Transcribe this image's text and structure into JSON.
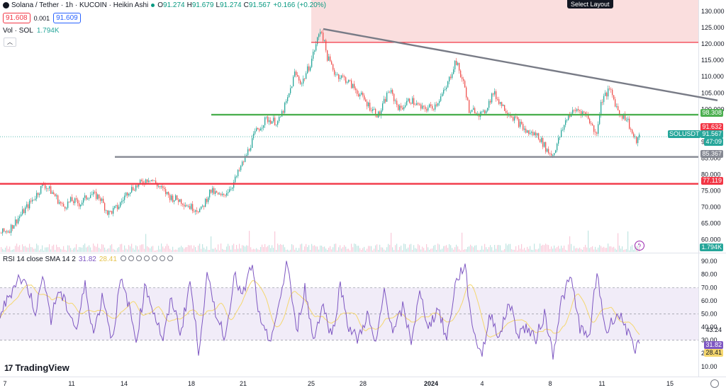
{
  "header": {
    "symbol": "Solana / Tether · 1h · KUCOIN · Heikin Ashi",
    "open_label": "O",
    "open": "91.274",
    "high_label": "H",
    "high": "91.679",
    "low_label": "L",
    "low": "91.274",
    "close_label": "C",
    "close": "91.567",
    "change": "+0.166 (+0.20%)",
    "sell_price": "91.608",
    "spread": "0.001",
    "buy_price": "91.609"
  },
  "volume": {
    "label": "Vol · SOL",
    "value": "1.794K"
  },
  "select_layout": "Select Layout",
  "rsi": {
    "label": "RSI 14 close SMA 14 2",
    "value": "31.82",
    "sma_value": "28.41"
  },
  "brand": "TradingView",
  "price_tags": {
    "resistance_green": "98.308",
    "red_tag": "91.632",
    "symbol_tag": "SOLUSDT",
    "last_price": "91.567",
    "countdown": "47:09",
    "support_gray": "85.367",
    "support_red": "77.119",
    "volume_tag": "1.794K",
    "rsi_value": "31.82",
    "rsi_sma": "28.41",
    "rsi_extra": "43.24"
  },
  "colors": {
    "up": "#26a69a",
    "down": "#ef5350",
    "green_line": "#4caf50",
    "red_line": "#f23645",
    "gray_line": "#868993",
    "rsi_line": "#7e57c2",
    "rsi_sma": "#f5d76e",
    "zone": "#f8d3d3"
  },
  "chart_data": [
    {
      "type": "candlestick",
      "style": "Heikin Ashi",
      "title": "Solana / Tether · 1h · KUCOIN · Heikin Ashi",
      "x_ticks": [
        "7",
        "11",
        "14",
        "18",
        "21",
        "25",
        "28",
        "2024",
        "4",
        "8",
        "11",
        "15"
      ],
      "y_ticks": [
        130,
        125,
        120,
        115,
        110,
        105,
        100,
        95,
        90,
        85,
        80,
        75,
        70,
        65,
        60
      ],
      "y_tick_labels": [
        "130.000",
        "125.000",
        "120.000",
        "115.000",
        "110.000",
        "105.000",
        "100.000",
        "95.000",
        "90.000",
        "85.000",
        "80.000",
        "75.000",
        "70.000",
        "65.000",
        "60.000"
      ],
      "ylim": [
        57.5,
        133.5
      ],
      "series": [
        {
          "name": "SOLUSDT",
          "close_path_x": [
            0,
            12,
            30,
            48,
            61,
            75,
            88,
            100,
            112,
            126,
            140,
            152,
            166,
            180,
            196,
            210,
            225,
            240,
            254,
            268,
            283,
            296,
            312,
            328,
            345,
            360,
            375,
            392,
            405,
            415,
            425,
            437,
            452,
            461,
            472,
            488,
            505,
            520,
            534,
            548,
            563,
            578,
            595,
            612,
            628,
            642,
            656,
            662,
            668,
            680,
            695,
            712,
            726,
            742,
            758,
            772,
            779,
            788,
            800,
            814,
            828,
            840,
            848,
            860,
            872,
            884,
            890,
            896,
            902
          ],
          "close_path_y": [
            62,
            63,
            68,
            73,
            77,
            74,
            70,
            72,
            71,
            74,
            73,
            68,
            70,
            75,
            77,
            79,
            76,
            73,
            72,
            70,
            69,
            75,
            73,
            77,
            85,
            93,
            97,
            96,
            103,
            111,
            108,
            114,
            125,
            116,
            111,
            109,
            105,
            101,
            98,
            106,
            100,
            103,
            100,
            101,
            106,
            115,
            106,
            98,
            100,
            98,
            105,
            100,
            97,
            93,
            92,
            87,
            86,
            91,
            98,
            100,
            98,
            92,
            103,
            106,
            99,
            97,
            93,
            90,
            91.5
          ]
        }
      ],
      "horizontal_levels": [
        {
          "value": 120.5,
          "color": "red"
        },
        {
          "value": 98.308,
          "color": "green"
        },
        {
          "value": 85.367,
          "color": "gray"
        },
        {
          "value": 77.119,
          "color": "red"
        }
      ],
      "trendline": {
        "from": [
          456,
          124.6
        ],
        "to": [
          1012,
          102.7
        ]
      },
      "zone": {
        "from_x": 439,
        "to_x": 985,
        "from_y": 120.5,
        "to_y": 135
      }
    },
    {
      "type": "line",
      "title": "RSI 14 close SMA 14 2",
      "y_ticks": [
        90,
        80,
        70,
        60,
        50,
        40,
        30,
        20,
        10
      ],
      "y_tick_labels": [
        "90.00",
        "80.00",
        "70.00",
        "60.00",
        "50.00",
        "40.00",
        "30.00",
        "20.00",
        "10.00"
      ],
      "ylim": [
        4.5,
        96
      ],
      "bands": {
        "upper": 70,
        "middle": 50,
        "lower": 30
      },
      "series": [
        {
          "name": "RSI",
          "x": [
            0,
            12,
            25,
            38,
            50,
            62,
            72,
            82,
            95,
            108,
            120,
            132,
            145,
            158,
            170,
            180,
            192,
            205,
            218,
            230,
            242,
            255,
            268,
            280,
            292,
            305,
            318,
            330,
            342,
            355,
            368,
            380,
            392,
            405,
            418,
            430,
            442,
            455,
            468,
            480,
            492,
            505,
            518,
            530,
            542,
            555,
            568,
            580,
            592,
            605,
            618,
            630,
            642,
            655,
            668,
            680,
            692,
            705,
            718,
            730,
            742,
            755,
            768,
            780,
            792,
            805,
            818,
            830,
            842,
            855,
            868,
            880,
            890,
            896,
            902
          ],
          "values": [
            50,
            62,
            78,
            72,
            52,
            80,
            45,
            68,
            55,
            38,
            72,
            35,
            65,
            30,
            75,
            60,
            30,
            72,
            50,
            30,
            62,
            35,
            75,
            22,
            78,
            50,
            32,
            80,
            62,
            88,
            40,
            30,
            50,
            92,
            35,
            70,
            30,
            58,
            32,
            72,
            40,
            30,
            50,
            25,
            68,
            35,
            55,
            30,
            65,
            40,
            55,
            30,
            72,
            88,
            35,
            20,
            50,
            32,
            60,
            35,
            40,
            30,
            50,
            20,
            60,
            78,
            40,
            30,
            80,
            35,
            50,
            45,
            28,
            20,
            31.82
          ]
        }
      ]
    }
  ]
}
